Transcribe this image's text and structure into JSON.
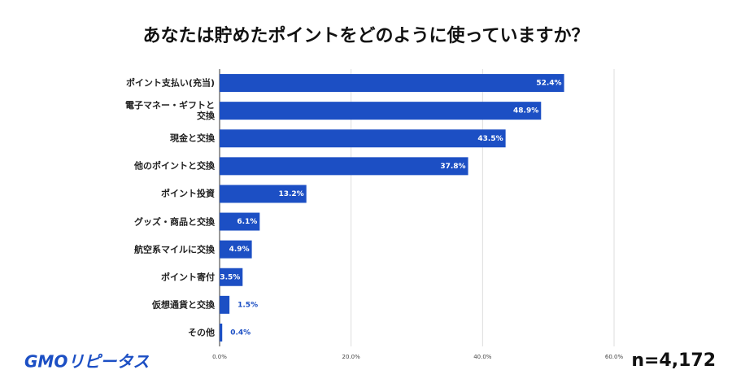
{
  "chart_data": {
    "type": "hbar",
    "title": "あなたは貯めたポイントをどのように使っていますか？",
    "categories": [
      "ポイント支払い(充当)",
      "電子マネー・ギフトと\n交換",
      "現金と交換",
      "他のポイントと交換",
      "ポイント投資",
      "グッズ・商品と交換",
      "航空系マイルに交換",
      "ポイント寄付",
      "仮想通貨と交換",
      "その他"
    ],
    "values": [
      52.4,
      48.9,
      43.5,
      37.8,
      13.2,
      6.1,
      4.9,
      3.5,
      1.5,
      0.4
    ],
    "value_labels": [
      "52.4%",
      "48.9%",
      "43.5%",
      "37.8%",
      "13.2%",
      "6.1%",
      "4.9%",
      "3.5%",
      "1.5%",
      "0.4%"
    ],
    "color": "#1c4fc4",
    "xlim": [
      0,
      60
    ],
    "xticks": [
      {
        "value": 0,
        "label": "0.0%"
      },
      {
        "value": 20,
        "label": "20.0%"
      },
      {
        "value": 40,
        "label": "40.0%"
      },
      {
        "value": 60,
        "label": "60.0%"
      }
    ],
    "grid": true,
    "logo": "GMOリピータス",
    "sample_size": "n=4,172"
  }
}
